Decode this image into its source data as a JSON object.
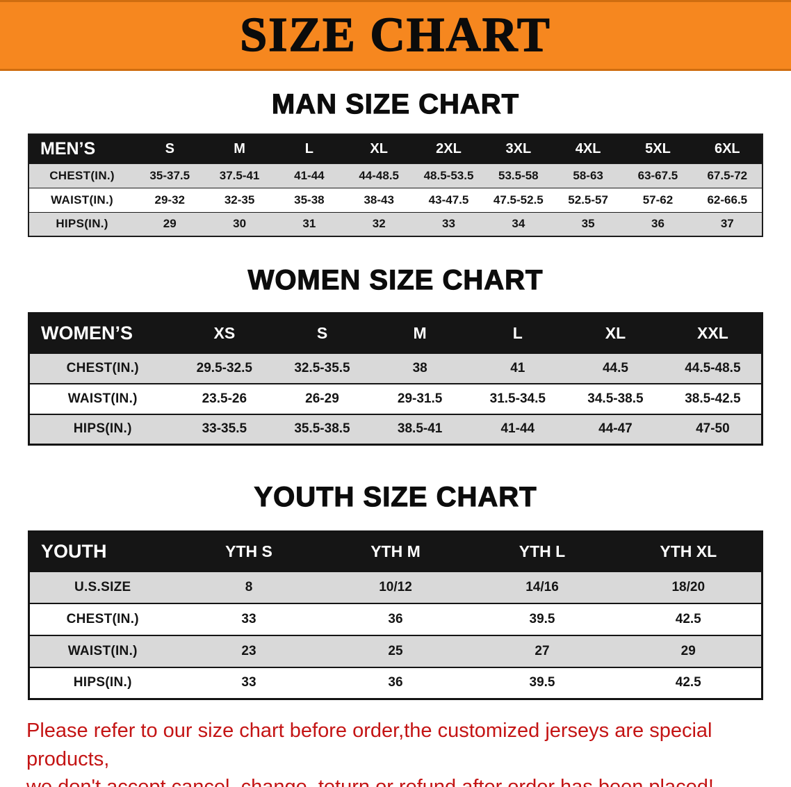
{
  "banner": {
    "title": "SIZE CHART"
  },
  "sections": [
    {
      "id": "men",
      "heading": "MAN SIZE CHART",
      "table": {
        "header": [
          "MEN’S",
          "S",
          "M",
          "L",
          "XL",
          "2XL",
          "3XL",
          "4XL",
          "5XL",
          "6XL"
        ],
        "rows": [
          {
            "label": "CHEST(IN.)",
            "values": [
              "35-37.5",
              "37.5-41",
              "41-44",
              "44-48.5",
              "48.5-53.5",
              "53.5-58",
              "58-63",
              "63-67.5",
              "67.5-72"
            ]
          },
          {
            "label": "WAIST(IN.)",
            "values": [
              "29-32",
              "32-35",
              "35-38",
              "38-43",
              "43-47.5",
              "47.5-52.5",
              "52.5-57",
              "57-62",
              "62-66.5"
            ]
          },
          {
            "label": "HIPS(IN.)",
            "values": [
              "29",
              "30",
              "31",
              "32",
              "33",
              "34",
              "35",
              "36",
              "37"
            ]
          }
        ]
      }
    },
    {
      "id": "women",
      "heading": "WOMEN SIZE CHART",
      "table": {
        "header": [
          "WOMEN’S",
          "XS",
          "S",
          "M",
          "L",
          "XL",
          "XXL"
        ],
        "rows": [
          {
            "label": "CHEST(IN.)",
            "values": [
              "29.5-32.5",
              "32.5-35.5",
              "38",
              "41",
              "44.5",
              "44.5-48.5"
            ]
          },
          {
            "label": "WAIST(IN.)",
            "values": [
              "23.5-26",
              "26-29",
              "29-31.5",
              "31.5-34.5",
              "34.5-38.5",
              "38.5-42.5"
            ]
          },
          {
            "label": "HIPS(IN.)",
            "values": [
              "33-35.5",
              "35.5-38.5",
              "38.5-41",
              "41-44",
              "44-47",
              "47-50"
            ]
          }
        ]
      }
    },
    {
      "id": "youth",
      "heading": "YOUTH SIZE CHART",
      "table": {
        "header": [
          "YOUTH",
          "YTH S",
          "YTH M",
          "YTH L",
          "YTH XL"
        ],
        "rows": [
          {
            "label": "U.S.SIZE",
            "values": [
              "8",
              "10/12",
              "14/16",
              "18/20"
            ]
          },
          {
            "label": "CHEST(IN.)",
            "values": [
              "33",
              "36",
              "39.5",
              "42.5"
            ]
          },
          {
            "label": "WAIST(IN.)",
            "values": [
              "23",
              "25",
              "27",
              "29"
            ]
          },
          {
            "label": "HIPS(IN.)",
            "values": [
              "33",
              "36",
              "39.5",
              "42.5"
            ]
          }
        ]
      }
    }
  ],
  "disclaimer": {
    "lines": [
      "Please refer to our size chart before order,the customized jerseys are special products,",
      "we don't accept cancel, change, teturn or refund after order has been placed!"
    ]
  },
  "colors": {
    "banner_orange": "#F6871F",
    "header_black": "#151515",
    "row_shade": "#D9D9D9",
    "disclaimer_red": "#C41414"
  }
}
